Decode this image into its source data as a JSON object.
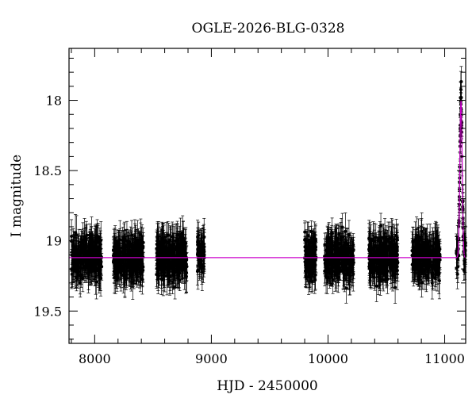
{
  "chart_data": {
    "type": "scatter",
    "title": "OGLE-2026-BLG-0328",
    "xlabel": "HJD - 2450000",
    "ylabel": "I magnitude",
    "xlim": [
      7780,
      11180
    ],
    "ylim": [
      19.73,
      17.63
    ],
    "y_inverted": true,
    "x_ticks": [
      8000,
      9000,
      10000,
      11000
    ],
    "x_tick_labels": [
      "8000",
      "9000",
      "10000",
      "11000"
    ],
    "y_ticks": [
      18,
      18.5,
      19,
      19.5
    ],
    "y_tick_labels": [
      "18",
      "18.5",
      "19",
      "19.5"
    ],
    "x_minor_step": 200,
    "y_minor_step": 0.1,
    "grid": false,
    "series": [
      {
        "kind": "points_with_errorbars",
        "color": "#000000",
        "seasons": [
          {
            "x_range": [
              7800,
              8060
            ],
            "mean": 19.12,
            "scatter": 0.13,
            "err": 0.1
          },
          {
            "x_range": [
              8160,
              8420
            ],
            "mean": 19.12,
            "scatter": 0.13,
            "err": 0.1
          },
          {
            "x_range": [
              8530,
              8790
            ],
            "mean": 19.12,
            "scatter": 0.13,
            "err": 0.1
          },
          {
            "x_range": [
              8880,
              8940
            ],
            "mean": 19.1,
            "scatter": 0.12,
            "err": 0.1
          },
          {
            "x_range": [
              9800,
              9900
            ],
            "mean": 19.12,
            "scatter": 0.14,
            "err": 0.1
          },
          {
            "x_range": [
              9970,
              10220
            ],
            "mean": 19.12,
            "scatter": 0.13,
            "err": 0.1
          },
          {
            "x_range": [
              10350,
              10600
            ],
            "mean": 19.12,
            "scatter": 0.13,
            "err": 0.1
          },
          {
            "x_range": [
              10720,
              10960
            ],
            "mean": 19.12,
            "scatter": 0.13,
            "err": 0.1
          },
          {
            "x_range": [
              11100,
              11180
            ],
            "mean": 19.12,
            "scatter": 0.12,
            "err": 0.1
          }
        ]
      },
      {
        "kind": "model_curve",
        "color": "#cc00cc",
        "baseline": 19.12,
        "peak_x": 11140,
        "peak_mag": 18.0,
        "width": 14
      }
    ]
  }
}
